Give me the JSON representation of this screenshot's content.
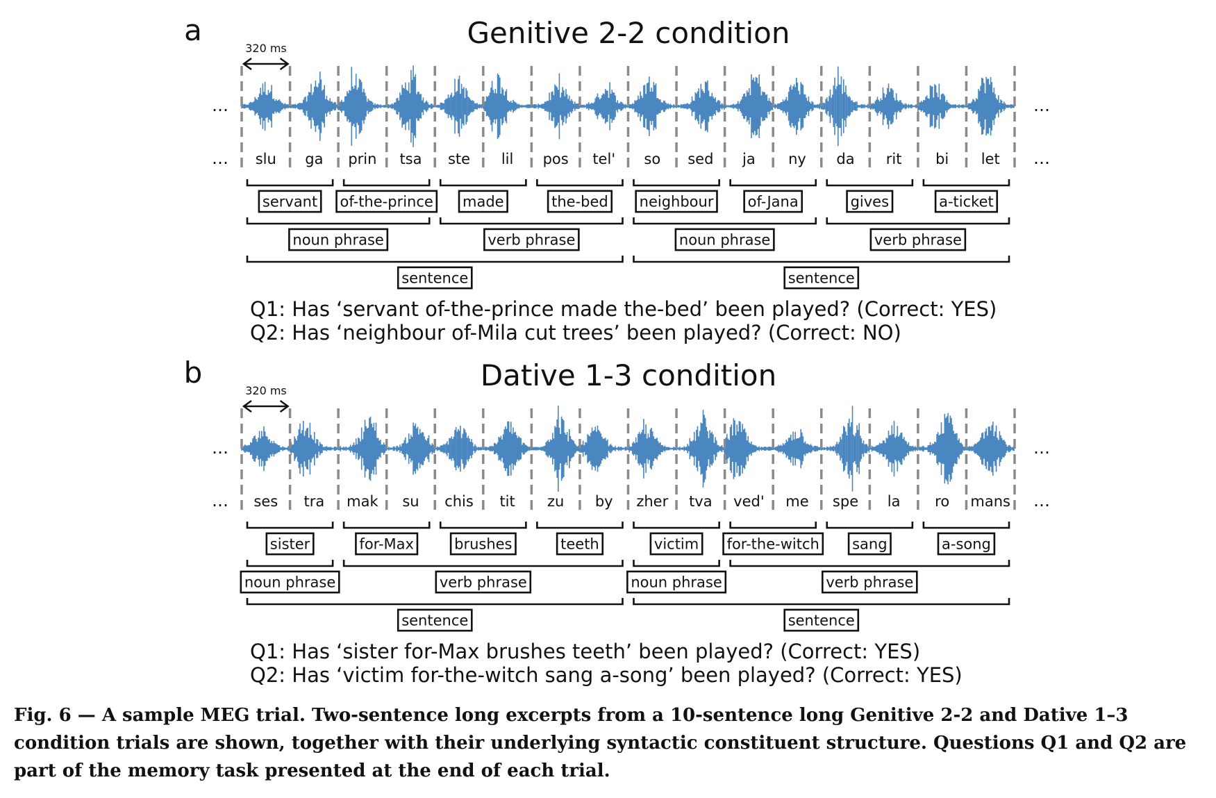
{
  "panels": [
    {
      "letter": "a",
      "title": "Genitive 2-2 condition",
      "duration_label": "320 ms",
      "ellipsis": "…",
      "syllables": [
        "slu",
        "ga",
        "prin",
        "tsa",
        "ste",
        "lil",
        "pos",
        "tel'",
        "so",
        "sed",
        "ja",
        "ny",
        "da",
        "rit",
        "bi",
        "let"
      ],
      "words": [
        "servant",
        "of-the-prince",
        "made",
        "the-bed",
        "neighbour",
        "of-Jana",
        "gives",
        "a-ticket"
      ],
      "phrases": [
        {
          "label": "noun phrase",
          "span": [
            0,
            3
          ]
        },
        {
          "label": "verb phrase",
          "span": [
            4,
            7
          ]
        },
        {
          "label": "noun phrase",
          "span": [
            8,
            11
          ]
        },
        {
          "label": "verb phrase",
          "span": [
            12,
            15
          ]
        }
      ],
      "sentences": [
        {
          "label": "sentence",
          "span": [
            0,
            7
          ]
        },
        {
          "label": "sentence",
          "span": [
            8,
            15
          ]
        }
      ],
      "questions": [
        "Q1: Has ‘servant of-the-prince made the-bed’ been played? (Correct: YES)",
        "Q2: Has ‘neighbour of-Mila cut trees’ been played? (Correct: NO)"
      ]
    },
    {
      "letter": "b",
      "title": "Dative 1-3 condition",
      "duration_label": "320 ms",
      "ellipsis": "…",
      "syllables": [
        "ses",
        "tra",
        "mak",
        "su",
        "chis",
        "tit",
        "zu",
        "by",
        "zher",
        "tva",
        "ved'",
        "me",
        "spe",
        "la",
        "ro",
        "mans"
      ],
      "words": [
        "sister",
        "for-Max",
        "brushes",
        "teeth",
        "victim",
        "for-the-witch",
        "sang",
        "a-song"
      ],
      "phrases": [
        {
          "label": "noun phrase",
          "span": [
            0,
            1
          ]
        },
        {
          "label": "verb phrase",
          "span": [
            2,
            7
          ]
        },
        {
          "label": "noun phrase",
          "span": [
            8,
            9
          ]
        },
        {
          "label": "verb phrase",
          "span": [
            10,
            15
          ]
        }
      ],
      "sentences": [
        {
          "label": "sentence",
          "span": [
            0,
            7
          ]
        },
        {
          "label": "sentence",
          "span": [
            8,
            15
          ]
        }
      ],
      "questions": [
        "Q1: Has ‘sister for-Max brushes teeth’ been played? (Correct: YES)",
        "Q2: Has ‘victim for-the-witch sang a-song’ been played? (Correct: YES)"
      ]
    }
  ],
  "caption": "Fig. 6 — A sample MEG trial. Two-sentence long excerpts from a 10-sentence long Genitive 2-2 and Dative 1–3 condition trials are shown, together with their underlying syntactic constituent structure. Questions Q1 and Q2 are part of the memory task presented at the end of each trial.",
  "colors": {
    "waveform": "#4a86bf",
    "divider": "#8a8a8a",
    "text": "#111111"
  }
}
